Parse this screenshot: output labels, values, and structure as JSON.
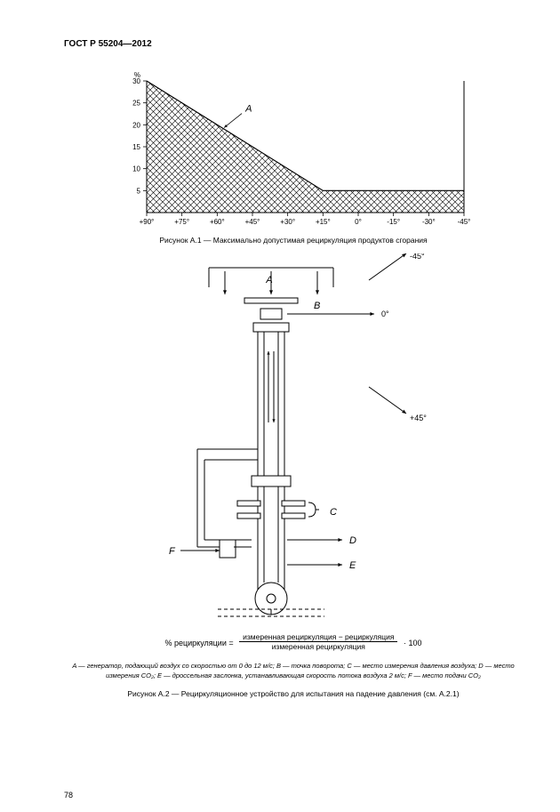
{
  "header": {
    "title": "ГОСТ Р 55204—2012"
  },
  "chart_a1": {
    "type": "line",
    "y_unit": "%",
    "y_ticks": [
      30,
      25,
      20,
      15,
      10,
      5
    ],
    "x_ticks": [
      "+90°",
      "+75°",
      "+60°",
      "+45°",
      "+30°",
      "+15°",
      "0°",
      "-15°",
      "-30°",
      "-45°"
    ],
    "curve_label": "A",
    "points": [
      [
        0,
        30
      ],
      [
        5,
        5
      ],
      [
        9,
        5
      ]
    ],
    "ylim": [
      0,
      30
    ],
    "xlim_index": [
      0,
      9
    ],
    "axis_color": "#000000",
    "hatch_color": "#000000",
    "tick_fontsize": 8,
    "label_fontsize": 11,
    "line_width": 1.2,
    "hatch_spacing": 7
  },
  "caption_a1": "Рисунок А.1 — Максимально допустимая рециркуляция продуктов сгорания",
  "diagram_a2": {
    "labels": {
      "A": "A",
      "B": "B",
      "C": "C",
      "D": "D",
      "E": "E",
      "F": "F"
    },
    "angle_labels": {
      "neg45": "-45°",
      "zero": "0°",
      "pos45": "+45°"
    },
    "label_fontsize": 11,
    "line_color": "#000000",
    "line_width": 1
  },
  "formula": {
    "lhs": "% рециркуляции =",
    "numerator": "измеренная рециркуляция − рециркуляция",
    "denominator": "измеренная рециркуляция",
    "tail": "· 100"
  },
  "legend_a2": {
    "text": "A — генератор, подающий воздух со скоростью от 0 до 12 м/с; B — точка поворота; C — место измерения давления воздуха; D — место измерения CO₂; E — дроссельная заслонка, устанавливающая скорость потока воздуха 2 м/с; F — место подачи CO₂"
  },
  "caption_a2": "Рисунок А.2 — Рециркуляционное устройство для испытания на падение давления (см. А.2.1)",
  "page_number": "78"
}
